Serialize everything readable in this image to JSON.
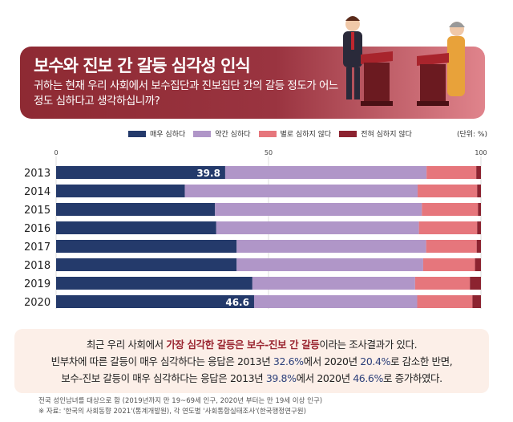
{
  "header": {
    "title": "보수와 진보 간 갈등 심각성 인식",
    "question": "귀하는 현재 우리 사회에서 보수집단과 진보집단 간의 갈등 정도가 어느 정도 심하다고 생각하십니까?"
  },
  "chart_data": {
    "type": "bar",
    "orientation": "horizontal",
    "stacked": true,
    "unit": "(단위: %)",
    "xlim": [
      0,
      100
    ],
    "xticks": [
      0,
      50,
      100
    ],
    "categories": [
      "2013",
      "2014",
      "2015",
      "2016",
      "2017",
      "2018",
      "2019",
      "2020"
    ],
    "series": [
      {
        "name": "매우 심하다",
        "color": "#243a6b",
        "values": [
          39.8,
          30.3,
          37.4,
          37.7,
          42.5,
          42.5,
          46.2,
          46.6
        ]
      },
      {
        "name": "약간 심하다",
        "color": "#b096c8",
        "values": [
          47.4,
          54.8,
          48.7,
          47.7,
          44.6,
          43.9,
          38.3,
          38.4
        ]
      },
      {
        "name": "별로 심하지 않다",
        "color": "#e6767c",
        "values": [
          11.7,
          14.0,
          13.2,
          13.7,
          11.9,
          12.2,
          12.9,
          13.0
        ]
      },
      {
        "name": "전혀 심하지 않다",
        "color": "#8c2330",
        "values": [
          1.1,
          0.9,
          0.7,
          0.9,
          1.0,
          1.4,
          2.6,
          2.0
        ]
      }
    ],
    "data_labels": [
      {
        "category": "2013",
        "text": "39.8"
      },
      {
        "category": "2020",
        "text": "46.6"
      }
    ],
    "legend": "top",
    "grid": true
  },
  "note": {
    "l1a": "최근 우리 사회에서 ",
    "l1b": "가장 심각한 갈등은 보수-진보 간 갈등",
    "l1c": "이라는 조사결과가 있다.",
    "l2a": "빈부차에 따른 갈등이 매우 심각하다는 응답은 2013년 ",
    "l2b": "32.6%",
    "l2c": "에서 2020년 ",
    "l2d": "20.4%",
    "l2e": "로 감소한 반면,",
    "l3a": "보수-진보 갈등이 매우 심각하다는 응답은 2013년 ",
    "l3b": "39.8%",
    "l3c": "에서 2020년 ",
    "l3d": "46.6%",
    "l3e": "로 증가하였다."
  },
  "footnotes": [
    "전국 성인남녀를 대상으로 함 (2019년까지 만 19~69세 인구, 2020년 부터는 만 19세 이상 인구)",
    "※ 자료: '한국의 사회동향 2021'(통계개발원), 각 연도별 '사회통합실태조사'(한국행정연구원)"
  ]
}
